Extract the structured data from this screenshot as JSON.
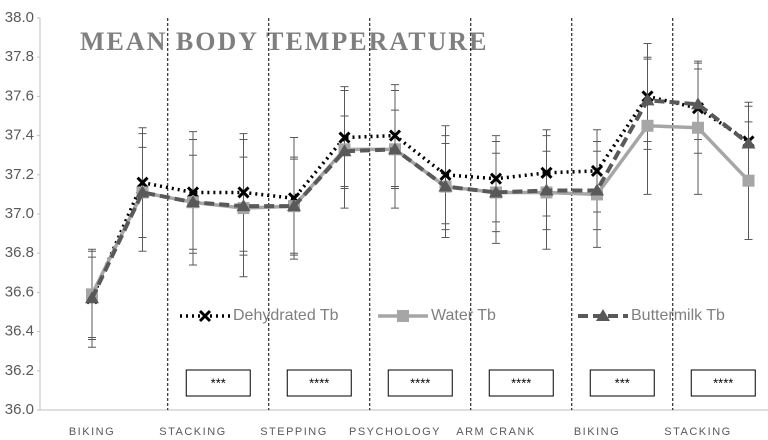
{
  "chart_data": {
    "type": "line",
    "title": "MEAN BODY TEMPERATURE",
    "categories": [
      "BIKING",
      null,
      "STACKING",
      null,
      "STEPPING",
      null,
      "PSYCHOLOGY",
      null,
      "ARM CRANK",
      null,
      "BIKING",
      null,
      "STACKING",
      null
    ],
    "series": [
      {
        "name": "Dehydrated Tb",
        "color": "#000000",
        "marker": "x",
        "dash": "dot",
        "values": [
          36.57,
          37.16,
          37.11,
          37.11,
          37.08,
          37.39,
          37.4,
          37.2,
          37.18,
          37.21,
          37.22,
          37.6,
          37.54,
          37.37
        ],
        "errors": [
          0.25,
          0.28,
          0.31,
          0.3,
          0.31,
          0.26,
          0.26,
          0.25,
          0.22,
          0.22,
          0.21,
          0.27,
          0.23,
          0.2
        ]
      },
      {
        "name": "Water Tb",
        "color": "#a6a6a6",
        "marker": "square",
        "dash": "solid",
        "values": [
          36.59,
          37.11,
          37.06,
          37.03,
          37.04,
          37.33,
          37.33,
          37.14,
          37.11,
          37.11,
          37.1,
          37.45,
          37.44,
          37.17
        ],
        "errors": [
          0.22,
          0.3,
          0.32,
          0.35,
          0.25,
          0.3,
          0.3,
          0.26,
          0.26,
          0.29,
          0.27,
          0.35,
          0.34,
          0.3
        ]
      },
      {
        "name": "Buttermilk Tb",
        "color": "#595959",
        "marker": "triangle",
        "dash": "dash",
        "values": [
          36.57,
          37.11,
          37.06,
          37.04,
          37.04,
          37.32,
          37.33,
          37.14,
          37.11,
          37.12,
          37.12,
          37.58,
          37.56,
          37.36
        ],
        "errors": [
          0.21,
          0.23,
          0.24,
          0.25,
          0.24,
          0.18,
          0.2,
          0.22,
          0.2,
          0.2,
          0.2,
          0.21,
          0.18,
          0.19
        ]
      }
    ],
    "annotations": [
      "***",
      "****",
      "****",
      "****",
      "***",
      "****"
    ],
    "ylim": [
      36,
      38
    ],
    "yticks": [
      {
        "value": 36,
        "label": "36.0"
      },
      36.2,
      36.4,
      36.6,
      36.8,
      {
        "value": 37,
        "label": "37.0"
      },
      37.2,
      37.4,
      37.6,
      37.8,
      {
        "value": 38,
        "label": "38.0"
      }
    ],
    "grid": false
  }
}
